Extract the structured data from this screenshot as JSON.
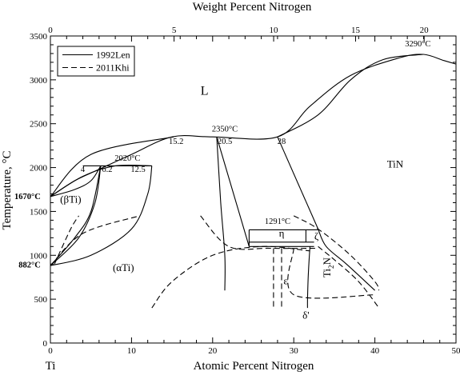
{
  "chart_data": {
    "type": "line",
    "xlabel": "Atomic Percent Nitrogen",
    "xlabel_top": "Weight Percent Nitrogen",
    "ylabel": "Temperature, °C",
    "corner_label": "Ti",
    "xlim": [
      0,
      50
    ],
    "ylim": [
      0,
      3500
    ],
    "x_ticks": [
      "0",
      "10",
      "20",
      "30",
      "40",
      "50"
    ],
    "x_top_ticks": [
      "0",
      "5",
      "10",
      "15",
      "20"
    ],
    "y_ticks": [
      "0",
      "500",
      "1000",
      "1500",
      "2000",
      "2500",
      "3000",
      "3500"
    ],
    "grid": false,
    "legend_position": "top-left",
    "legend": [
      {
        "name": "1992Len",
        "style": "solid"
      },
      {
        "name": "2011Khi",
        "style": "dashed"
      }
    ],
    "series": [
      {
        "name": "1992Len",
        "style": "solid",
        "points": [
          [
            0,
            1670
          ],
          [
            3,
            1850
          ],
          [
            6,
            1980
          ],
          [
            10,
            2150
          ],
          [
            15,
            2350
          ],
          [
            20,
            2350
          ],
          [
            28,
            2350
          ],
          [
            32,
            2700
          ],
          [
            37,
            3050
          ],
          [
            43,
            3250
          ],
          [
            46,
            3290
          ],
          [
            48.5,
            3220
          ],
          [
            50,
            3180
          ]
        ]
      },
      {
        "name": "1992Len",
        "style": "solid",
        "points": [
          [
            0,
            1670
          ],
          [
            4,
            1900
          ],
          [
            8,
            2020
          ],
          [
            12.5,
            2020
          ]
        ]
      },
      {
        "name": "1992Len",
        "style": "solid",
        "points": [
          [
            46,
            3290
          ],
          [
            41,
            3230
          ],
          [
            37,
            3000
          ],
          [
            33,
            2600
          ],
          [
            28,
            2350
          ]
        ]
      },
      {
        "name": "1992Len",
        "style": "solid",
        "points": [
          [
            15.2,
            2350
          ],
          [
            5,
            2150
          ],
          [
            0,
            1670
          ]
        ]
      },
      {
        "name": "1992Len",
        "style": "solid",
        "points": [
          [
            0,
            1670
          ],
          [
            3,
            1750
          ],
          [
            5,
            1850
          ],
          [
            6.2,
            2020
          ]
        ]
      },
      {
        "name": "1992Len",
        "style": "solid",
        "points": [
          [
            4,
            2020
          ],
          [
            12.5,
            2020
          ]
        ]
      },
      {
        "name": "1992Len",
        "style": "solid",
        "points": [
          [
            6.2,
            2020
          ],
          [
            5.5,
            1600
          ],
          [
            3.5,
            1200
          ],
          [
            0,
            882
          ]
        ]
      },
      {
        "name": "1992Len",
        "style": "solid",
        "points": [
          [
            12.5,
            2020
          ],
          [
            12,
            1700
          ],
          [
            10,
            1300
          ],
          [
            5,
            1000
          ],
          [
            0,
            882
          ]
        ]
      },
      {
        "name": "1992Len",
        "style": "solid",
        "points": [
          [
            0,
            882
          ],
          [
            3,
            1200
          ],
          [
            5,
            1500
          ],
          [
            6.2,
            2020
          ]
        ]
      },
      {
        "name": "1992Len",
        "style": "solid",
        "points": [
          [
            20.5,
            2350
          ],
          [
            24.5,
            1100
          ]
        ]
      },
      {
        "name": "1992Len",
        "style": "solid",
        "points": [
          [
            20.5,
            2350
          ],
          [
            21,
            1600
          ],
          [
            21.5,
            1000
          ],
          [
            21.5,
            600
          ]
        ]
      },
      {
        "name": "1992Len",
        "style": "solid",
        "points": [
          [
            28,
            2350
          ],
          [
            33,
            1300
          ]
        ]
      },
      {
        "name": "1992Len",
        "style": "solid",
        "points": [
          [
            24.5,
            1291
          ],
          [
            33,
            1291
          ]
        ]
      },
      {
        "name": "1992Len",
        "style": "solid",
        "points": [
          [
            24.5,
            1291
          ],
          [
            24.5,
            1100
          ]
        ]
      },
      {
        "name": "1992Len",
        "style": "solid",
        "points": [
          [
            24.5,
            1100
          ],
          [
            32.5,
            1100
          ]
        ]
      },
      {
        "name": "1992Len",
        "style": "solid",
        "points": [
          [
            24.5,
            1150
          ],
          [
            32.5,
            1150
          ]
        ]
      },
      {
        "name": "1992Len",
        "style": "solid",
        "points": [
          [
            31.5,
            1291
          ],
          [
            31.5,
            1150
          ]
        ]
      },
      {
        "name": "1992Len",
        "style": "solid",
        "points": [
          [
            32,
            1100
          ],
          [
            31.8,
            800
          ],
          [
            31.7,
            500
          ],
          [
            31.7,
            400
          ]
        ]
      },
      {
        "name": "1992Len",
        "style": "solid",
        "points": [
          [
            33,
            1300
          ],
          [
            34,
            1100
          ],
          [
            36.5,
            900
          ],
          [
            40,
            600
          ]
        ]
      },
      {
        "name": "2011Khi",
        "style": "dashed",
        "points": [
          [
            0,
            882
          ],
          [
            4,
            1250
          ],
          [
            11,
            1450
          ]
        ]
      },
      {
        "name": "2011Khi",
        "style": "dashed",
        "points": [
          [
            0.5,
            900
          ],
          [
            2.5,
            1300
          ],
          [
            3.5,
            1450
          ]
        ]
      },
      {
        "name": "2011Khi",
        "style": "dashed",
        "points": [
          [
            12.5,
            400
          ],
          [
            15,
            700
          ],
          [
            20,
            1000
          ],
          [
            26,
            1100
          ],
          [
            32,
            1050
          ]
        ]
      },
      {
        "name": "2011Khi",
        "style": "dashed",
        "points": [
          [
            18.5,
            1450
          ],
          [
            22,
            1100
          ],
          [
            27,
            1080
          ],
          [
            33,
            1080
          ]
        ]
      },
      {
        "name": "2011Khi",
        "style": "dashed",
        "points": [
          [
            27.5,
            1080
          ],
          [
            27.5,
            400
          ]
        ]
      },
      {
        "name": "2011Khi",
        "style": "dashed",
        "points": [
          [
            28.5,
            1080
          ],
          [
            28.5,
            400
          ]
        ]
      },
      {
        "name": "2011Khi",
        "style": "dashed",
        "points": [
          [
            30,
            1450
          ],
          [
            33,
            1300
          ],
          [
            37,
            1000
          ],
          [
            40,
            700
          ],
          [
            40.5,
            600
          ]
        ]
      },
      {
        "name": "2011Khi",
        "style": "dashed",
        "points": [
          [
            33,
            1100
          ],
          [
            35,
            950
          ],
          [
            38,
            700
          ],
          [
            40.5,
            400
          ]
        ]
      },
      {
        "name": "2011Khi",
        "style": "dashed",
        "points": [
          [
            30,
            1080
          ],
          [
            30,
            550
          ],
          [
            40,
            550
          ]
        ]
      }
    ],
    "annotations": [
      {
        "text": "L",
        "x": 19,
        "y": 2830,
        "style": "phase-big"
      },
      {
        "text": "TiN",
        "x": 42.5,
        "y": 2000,
        "style": "phase"
      },
      {
        "text": "(βTi)",
        "x": 2.5,
        "y": 1600,
        "style": "phase"
      },
      {
        "text": "(αTi)",
        "x": 9,
        "y": 820,
        "style": "phase"
      },
      {
        "text": "η",
        "x": 28.5,
        "y": 1210,
        "style": "phase"
      },
      {
        "text": "ζ",
        "x": 32.8,
        "y": 1180,
        "style": "phase"
      },
      {
        "text": "ε",
        "x": 29,
        "y": 670,
        "style": "phase"
      },
      {
        "text": "δ'",
        "x": 31.5,
        "y": 280,
        "style": "phase"
      },
      {
        "text": "Ti",
        "x": 34.5,
        "y": 860,
        "style": "phase",
        "subscript": "2",
        "rest": "N",
        "rotate": -90
      },
      {
        "text": "3290°C",
        "x": 45.3,
        "y": 3380,
        "style": "note"
      },
      {
        "text": "2350°C",
        "x": 21.5,
        "y": 2410,
        "style": "note"
      },
      {
        "text": "2020°C",
        "x": 9.5,
        "y": 2080,
        "style": "note"
      },
      {
        "text": "1291°C",
        "x": 28,
        "y": 1360,
        "style": "note"
      },
      {
        "text": "15.2",
        "x": 15.5,
        "y": 2270,
        "style": "note"
      },
      {
        "text": "20.5",
        "x": 21.5,
        "y": 2270,
        "style": "note"
      },
      {
        "text": "28",
        "x": 28.5,
        "y": 2270,
        "style": "note"
      },
      {
        "text": "4",
        "x": 4,
        "y": 1950,
        "style": "note"
      },
      {
        "text": "6.2",
        "x": 7,
        "y": 1950,
        "style": "note"
      },
      {
        "text": "12.5",
        "x": 10.8,
        "y": 1950,
        "style": "note"
      },
      {
        "text": "1670°C",
        "x": -1.2,
        "y": 1640,
        "style": "bold-left"
      },
      {
        "text": "882°C",
        "x": -1.2,
        "y": 860,
        "style": "bold-left"
      }
    ]
  }
}
